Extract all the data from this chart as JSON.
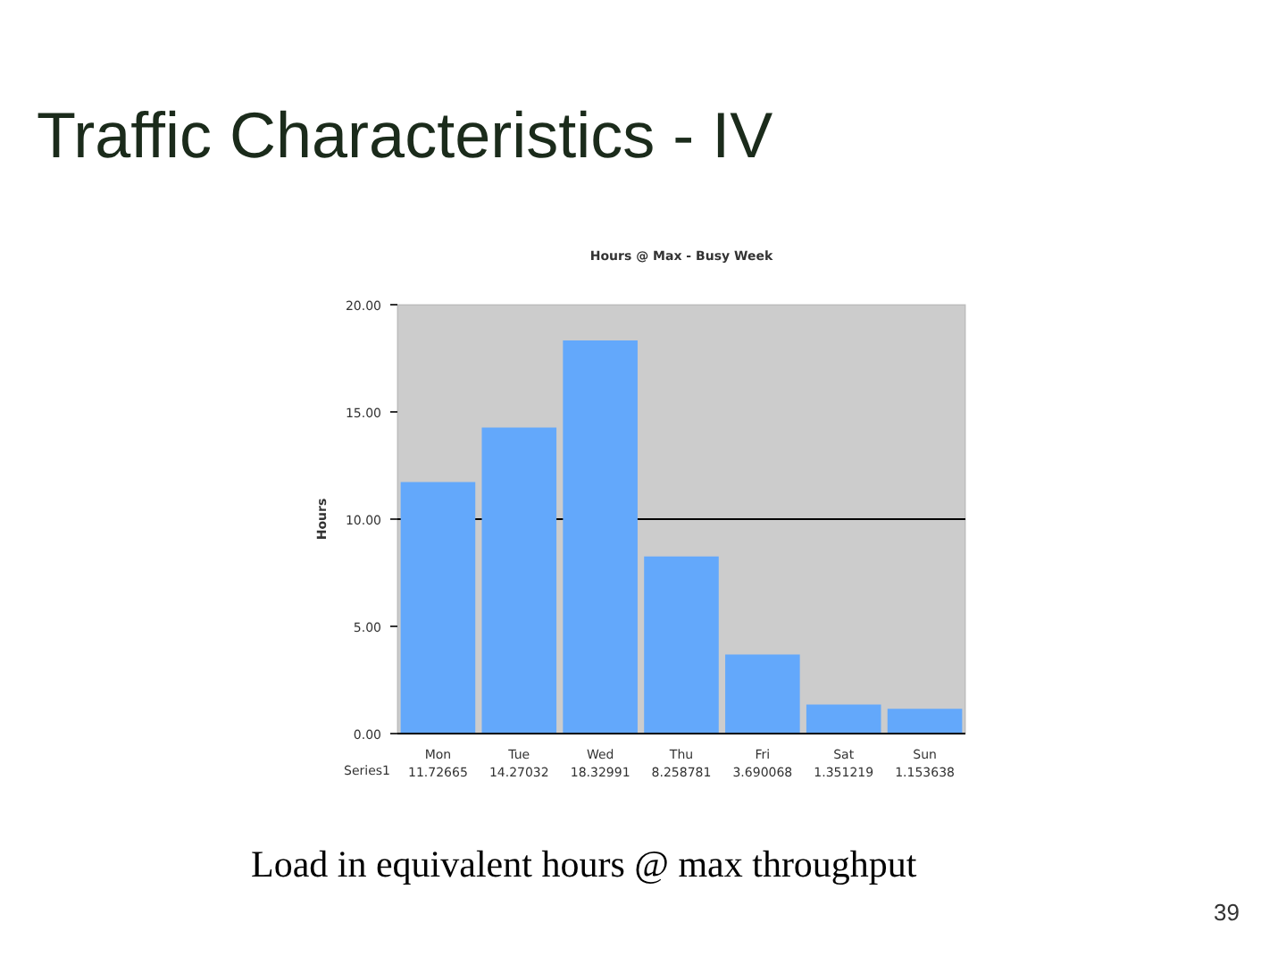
{
  "chart_data": {
    "type": "bar",
    "title": "Traffic Characteristics - IV",
    "subtitle": "Hours @ Max - Busy Week",
    "ylabel": "Hours",
    "categories": [
      "Mon",
      "Tue",
      "Wed",
      "Thu",
      "Fri",
      "Sat",
      "Sun"
    ],
    "series": [
      {
        "name": "Series1",
        "color": "#63a8fb",
        "values": [
          11.72665,
          14.27032,
          18.32991,
          8.258781,
          3.690068,
          1.351219,
          1.153638
        ]
      }
    ],
    "ylim": [
      0,
      20
    ],
    "yticks": [
      {
        "value": 0,
        "label": "0.00"
      },
      {
        "value": 5,
        "label": "5.00"
      },
      {
        "value": 10,
        "label": "10.00"
      },
      {
        "value": 15,
        "label": "15.00"
      },
      {
        "value": 20,
        "label": "20.00"
      }
    ],
    "grid": false,
    "ref_lines": [
      {
        "axis": "y",
        "value": 10,
        "color": "#000000"
      }
    ],
    "data_labels": true,
    "annotations": [
      "Load in equivalent hours @ max throughput",
      "39"
    ]
  }
}
